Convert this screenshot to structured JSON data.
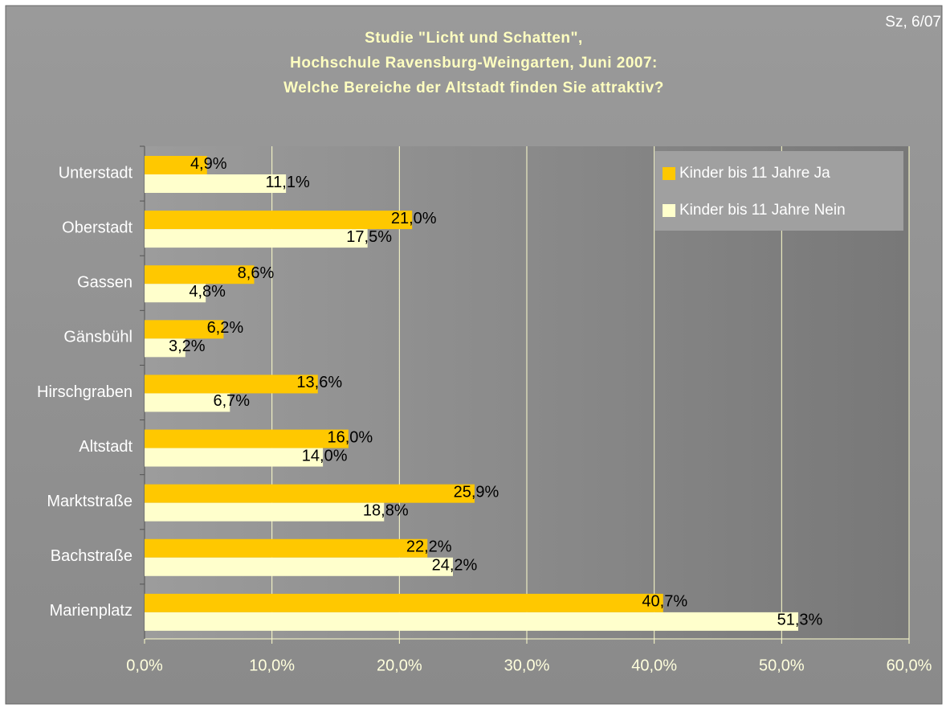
{
  "chart_data": {
    "type": "barh",
    "title": [
      "Studie \"Licht und Schatten\",",
      "Hochschule Ravensburg-Weingarten, Juni 2007:",
      "Welche Bereiche der Altstadt finden Sie attraktiv?"
    ],
    "annotation": "Sz, 6/07",
    "categories": [
      "Unterstadt",
      "Oberstadt",
      "Gassen",
      "Gänsbühl",
      "Hirschgraben",
      "Altstadt",
      "Marktstraße",
      "Bachstraße",
      "Marienplatz"
    ],
    "series": [
      {
        "name": "Kinder bis 11 Jahre Ja",
        "color": "#ffc800",
        "values": [
          4.9,
          21.0,
          8.6,
          6.2,
          13.6,
          16.0,
          25.9,
          22.2,
          40.7
        ],
        "value_labels": [
          "4,9%",
          "21,0%",
          "8,6%",
          "6,2%",
          "13,6%",
          "16,0%",
          "25,9%",
          "22,2%",
          "40,7%"
        ]
      },
      {
        "name": "Kinder bis 11 Jahre Nein",
        "color": "#ffffcc",
        "values": [
          11.1,
          17.5,
          4.8,
          3.2,
          6.7,
          14.0,
          18.8,
          24.2,
          51.3
        ],
        "value_labels": [
          "11,1%",
          "17,5%",
          "4,8%",
          "3,2%",
          "6,7%",
          "14,0%",
          "18,8%",
          "24,2%",
          "51,3%"
        ]
      }
    ],
    "xlim": [
      0,
      60
    ],
    "xticks": [
      {
        "value": 0,
        "label": "0,0%"
      },
      {
        "value": 10,
        "label": "10,0%"
      },
      {
        "value": 20,
        "label": "20,0%"
      },
      {
        "value": 30,
        "label": "30,0%"
      },
      {
        "value": 40,
        "label": "40,0%"
      },
      {
        "value": 50,
        "label": "50,0%"
      },
      {
        "value": 60,
        "label": "60,0%"
      }
    ],
    "grid": true,
    "legend": "top-right"
  }
}
